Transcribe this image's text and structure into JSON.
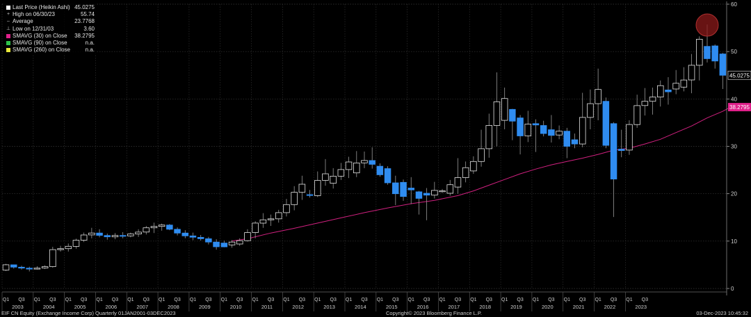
{
  "legend": {
    "items": [
      {
        "label": "Last Price (Heikin Ashi)",
        "value": "45.0275",
        "color": "#ffffff",
        "marker": "box"
      },
      {
        "label": "High on 06/30/23",
        "value": "55.74",
        "color": "#cccccc",
        "marker": "plus"
      },
      {
        "label": "Average",
        "value": "23.7768",
        "color": "#cccccc",
        "marker": "dash"
      },
      {
        "label": "Low on 12/31/03",
        "value": "3.60",
        "color": "#cccccc",
        "marker": "low"
      },
      {
        "label": "SMAVG (30)  on Close",
        "value": "38.2795",
        "color": "#e0208a",
        "marker": "box"
      },
      {
        "label": "SMAVG (90)  on Close",
        "value": "n.a.",
        "color": "#2ec24a",
        "marker": "box"
      },
      {
        "label": "SMAVG (260)  on Close",
        "value": "n.a.",
        "color": "#e8e83a",
        "marker": "box"
      }
    ]
  },
  "footer": {
    "left": "EIF CN Equity (Exchange Income Corp)  Quarterly 01JAN2001-03DEC2023",
    "center": "Copyright© 2023 Bloomberg Finance L.P.",
    "right": "03-Dec-2023 10:45:32"
  },
  "chart_data": {
    "type": "candlestick",
    "style": "Heikin Ashi",
    "frequency": "quarterly",
    "ylim": [
      0,
      60
    ],
    "yticks": [
      0,
      10,
      20,
      30,
      40,
      50,
      60
    ],
    "y_axis_side": "right",
    "grid": true,
    "legend_position": "top-left",
    "up_color": "#000000",
    "down_color": "#2f8cf0",
    "sma_color": "#d0207f",
    "quarter_ticks": [
      "Q1",
      "Q3"
    ],
    "years": [
      "2003",
      "2004",
      "2005",
      "2006",
      "2007",
      "2008",
      "2009",
      "2010",
      "2011",
      "2012",
      "2013",
      "2014",
      "2015",
      "2016",
      "2017",
      "2018",
      "2019",
      "2020",
      "2021",
      "2022",
      "2023"
    ],
    "start": "2003 Q1",
    "candles": [
      {
        "o": 3.9,
        "h": 5.2,
        "l": 3.7,
        "c": 5.0
      },
      {
        "o": 5.0,
        "h": 5.0,
        "l": 4.2,
        "c": 4.5
      },
      {
        "o": 4.5,
        "h": 4.8,
        "l": 4.0,
        "c": 4.3
      },
      {
        "o": 4.3,
        "h": 4.6,
        "l": 3.6,
        "c": 4.1
      },
      {
        "o": 4.1,
        "h": 4.7,
        "l": 4.0,
        "c": 4.3
      },
      {
        "o": 4.3,
        "h": 4.9,
        "l": 4.1,
        "c": 4.6
      },
      {
        "o": 4.6,
        "h": 8.8,
        "l": 4.4,
        "c": 8.2
      },
      {
        "o": 8.2,
        "h": 9.0,
        "l": 7.8,
        "c": 8.4
      },
      {
        "o": 8.4,
        "h": 9.5,
        "l": 7.8,
        "c": 8.9
      },
      {
        "o": 8.9,
        "h": 10.5,
        "l": 8.4,
        "c": 10.2
      },
      {
        "o": 10.2,
        "h": 11.8,
        "l": 9.8,
        "c": 11.3
      },
      {
        "o": 11.3,
        "h": 12.8,
        "l": 10.6,
        "c": 11.7
      },
      {
        "o": 11.7,
        "h": 12.5,
        "l": 10.8,
        "c": 11.2
      },
      {
        "o": 11.2,
        "h": 11.6,
        "l": 10.3,
        "c": 10.9
      },
      {
        "o": 10.9,
        "h": 11.7,
        "l": 10.4,
        "c": 11.2
      },
      {
        "o": 11.2,
        "h": 11.9,
        "l": 10.6,
        "c": 11.1
      },
      {
        "o": 11.1,
        "h": 11.8,
        "l": 10.8,
        "c": 11.5
      },
      {
        "o": 11.5,
        "h": 12.5,
        "l": 10.9,
        "c": 11.9
      },
      {
        "o": 11.9,
        "h": 13.2,
        "l": 11.4,
        "c": 12.8
      },
      {
        "o": 12.8,
        "h": 13.9,
        "l": 11.7,
        "c": 13.1
      },
      {
        "o": 13.1,
        "h": 13.7,
        "l": 12.2,
        "c": 13.4
      },
      {
        "o": 13.4,
        "h": 13.6,
        "l": 12.3,
        "c": 12.5
      },
      {
        "o": 12.5,
        "h": 12.9,
        "l": 11.2,
        "c": 11.7
      },
      {
        "o": 11.7,
        "h": 12.3,
        "l": 10.6,
        "c": 11.1
      },
      {
        "o": 11.1,
        "h": 11.8,
        "l": 10.2,
        "c": 10.8
      },
      {
        "o": 10.8,
        "h": 11.3,
        "l": 10.1,
        "c": 10.5
      },
      {
        "o": 10.5,
        "h": 10.9,
        "l": 9.3,
        "c": 9.8
      },
      {
        "o": 9.8,
        "h": 10.4,
        "l": 8.2,
        "c": 8.8
      },
      {
        "o": 9.6,
        "h": 10.1,
        "l": 8.7,
        "c": 8.8
      },
      {
        "o": 9.2,
        "h": 10.2,
        "l": 8.6,
        "c": 9.8
      },
      {
        "o": 9.4,
        "h": 10.6,
        "l": 9.0,
        "c": 10.1
      },
      {
        "o": 10.1,
        "h": 12.5,
        "l": 9.9,
        "c": 11.8
      },
      {
        "o": 11.8,
        "h": 14.2,
        "l": 10.6,
        "c": 13.8
      },
      {
        "o": 13.8,
        "h": 15.9,
        "l": 12.8,
        "c": 14.5
      },
      {
        "o": 14.5,
        "h": 15.6,
        "l": 13.2,
        "c": 14.7
      },
      {
        "o": 14.7,
        "h": 16.6,
        "l": 13.9,
        "c": 16.0
      },
      {
        "o": 16.0,
        "h": 18.9,
        "l": 15.2,
        "c": 17.7
      },
      {
        "o": 17.7,
        "h": 21.6,
        "l": 16.5,
        "c": 20.3
      },
      {
        "o": 20.3,
        "h": 23.8,
        "l": 18.7,
        "c": 22.0
      },
      {
        "o": 19.8,
        "h": 20.8,
        "l": 19.2,
        "c": 19.7
      },
      {
        "o": 19.6,
        "h": 24.7,
        "l": 19.3,
        "c": 22.8
      },
      {
        "o": 22.8,
        "h": 27.3,
        "l": 21.7,
        "c": 24.2
      },
      {
        "o": 22.2,
        "h": 25.4,
        "l": 21.1,
        "c": 23.7
      },
      {
        "o": 23.7,
        "h": 26.5,
        "l": 22.9,
        "c": 25.1
      },
      {
        "o": 25.1,
        "h": 27.8,
        "l": 23.3,
        "c": 26.7
      },
      {
        "o": 24.4,
        "h": 29.0,
        "l": 23.5,
        "c": 26.5
      },
      {
        "o": 26.5,
        "h": 28.9,
        "l": 25.4,
        "c": 27.0
      },
      {
        "o": 27.0,
        "h": 29.8,
        "l": 25.3,
        "c": 26.2
      },
      {
        "o": 25.8,
        "h": 26.4,
        "l": 23.6,
        "c": 24.0
      },
      {
        "o": 25.3,
        "h": 25.8,
        "l": 21.9,
        "c": 22.3
      },
      {
        "o": 22.3,
        "h": 23.8,
        "l": 17.6,
        "c": 20.0
      },
      {
        "o": 22.4,
        "h": 23.0,
        "l": 18.5,
        "c": 19.4
      },
      {
        "o": 21.2,
        "h": 23.5,
        "l": 17.8,
        "c": 20.8
      },
      {
        "o": 20.4,
        "h": 20.6,
        "l": 15.6,
        "c": 19.0
      },
      {
        "o": 20.1,
        "h": 21.2,
        "l": 14.4,
        "c": 19.7
      },
      {
        "o": 19.7,
        "h": 22.5,
        "l": 19.0,
        "c": 20.7
      },
      {
        "o": 20.5,
        "h": 21.0,
        "l": 20.2,
        "c": 20.6
      },
      {
        "o": 20.1,
        "h": 22.9,
        "l": 19.6,
        "c": 21.9
      },
      {
        "o": 21.4,
        "h": 27.5,
        "l": 20.0,
        "c": 23.4
      },
      {
        "o": 23.4,
        "h": 26.8,
        "l": 22.4,
        "c": 25.5
      },
      {
        "o": 24.8,
        "h": 27.9,
        "l": 24.2,
        "c": 26.8
      },
      {
        "o": 26.8,
        "h": 33.5,
        "l": 25.7,
        "c": 29.5
      },
      {
        "o": 29.5,
        "h": 36.9,
        "l": 27.6,
        "c": 34.4
      },
      {
        "o": 34.4,
        "h": 45.6,
        "l": 30.0,
        "c": 39.4
      },
      {
        "o": 35.5,
        "h": 42.4,
        "l": 33.6,
        "c": 40.1
      },
      {
        "o": 37.8,
        "h": 37.9,
        "l": 31.3,
        "c": 35.3
      },
      {
        "o": 36.0,
        "h": 36.6,
        "l": 28.3,
        "c": 32.2
      },
      {
        "o": 32.2,
        "h": 37.5,
        "l": 30.9,
        "c": 34.7
      },
      {
        "o": 34.8,
        "h": 35.7,
        "l": 28.8,
        "c": 34.5
      },
      {
        "o": 34.4,
        "h": 35.4,
        "l": 32.1,
        "c": 32.7
      },
      {
        "o": 33.5,
        "h": 36.6,
        "l": 30.8,
        "c": 32.3
      },
      {
        "o": 32.4,
        "h": 34.4,
        "l": 31.5,
        "c": 33.2
      },
      {
        "o": 33.2,
        "h": 33.9,
        "l": 27.5,
        "c": 30.0
      },
      {
        "o": 31.4,
        "h": 32.7,
        "l": 29.6,
        "c": 30.5
      },
      {
        "o": 30.5,
        "h": 41.3,
        "l": 29.8,
        "c": 36.1
      },
      {
        "o": 36.1,
        "h": 42.0,
        "l": 33.6,
        "c": 39.0
      },
      {
        "o": 39.0,
        "h": 46.4,
        "l": 35.5,
        "c": 42.0
      },
      {
        "o": 39.5,
        "h": 40.3,
        "l": 29.6,
        "c": 30.2
      },
      {
        "o": 34.8,
        "h": 35.1,
        "l": 15.1,
        "c": 23.1
      },
      {
        "o": 29.4,
        "h": 33.5,
        "l": 27.7,
        "c": 29.1
      },
      {
        "o": 29.2,
        "h": 35.5,
        "l": 28.2,
        "c": 34.6
      },
      {
        "o": 34.6,
        "h": 40.9,
        "l": 33.9,
        "c": 38.6
      },
      {
        "o": 38.6,
        "h": 42.3,
        "l": 36.5,
        "c": 39.5
      },
      {
        "o": 39.5,
        "h": 42.4,
        "l": 36.7,
        "c": 40.4
      },
      {
        "o": 40.4,
        "h": 43.9,
        "l": 38.4,
        "c": 42.8
      },
      {
        "o": 41.9,
        "h": 44.6,
        "l": 38.8,
        "c": 41.5
      },
      {
        "o": 42.1,
        "h": 46.1,
        "l": 41.0,
        "c": 43.3
      },
      {
        "o": 42.5,
        "h": 46.7,
        "l": 41.6,
        "c": 44.0
      },
      {
        "o": 44.0,
        "h": 49.5,
        "l": 41.2,
        "c": 47.1
      },
      {
        "o": 47.1,
        "h": 53.2,
        "l": 43.9,
        "c": 52.6
      },
      {
        "o": 51.1,
        "h": 55.7,
        "l": 47.7,
        "c": 48.5
      },
      {
        "o": 51.2,
        "h": 51.5,
        "l": 46.4,
        "c": 48.0
      },
      {
        "o": 49.5,
        "h": 49.7,
        "l": 42.1,
        "c": 45.0
      }
    ],
    "sma30": [
      [
        29,
        10.0
      ],
      [
        31,
        10.5
      ],
      [
        34,
        11.7
      ],
      [
        37,
        12.7
      ],
      [
        40,
        13.8
      ],
      [
        43,
        14.9
      ],
      [
        46,
        16.0
      ],
      [
        49,
        17.0
      ],
      [
        52,
        17.9
      ],
      [
        55,
        18.6
      ],
      [
        58,
        19.6
      ],
      [
        60,
        20.6
      ],
      [
        62,
        21.8
      ],
      [
        64,
        23.0
      ],
      [
        66,
        24.2
      ],
      [
        68,
        25.2
      ],
      [
        70,
        26.1
      ],
      [
        72,
        26.8
      ],
      [
        74,
        27.5
      ],
      [
        76,
        28.3
      ],
      [
        78,
        29.2
      ],
      [
        80,
        29.6
      ],
      [
        82,
        30.5
      ],
      [
        84,
        31.5
      ],
      [
        86,
        32.9
      ],
      [
        88,
        34.3
      ],
      [
        90,
        36.0
      ],
      [
        92,
        37.4
      ],
      [
        93,
        38.2795
      ]
    ],
    "last_price_label": "45.0275",
    "sma_label": "38.2795",
    "highlight": {
      "index": 90,
      "value": 55.74,
      "color": "#8b1a1a"
    }
  }
}
